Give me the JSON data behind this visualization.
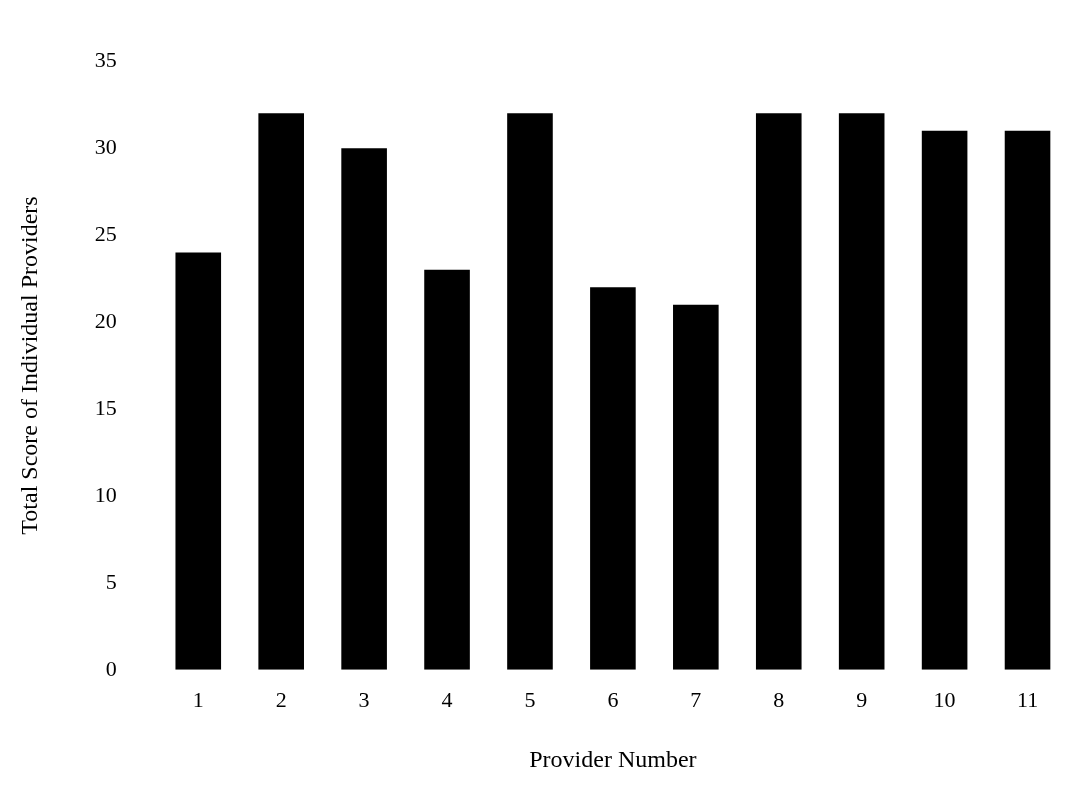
{
  "chart_data": {
    "type": "bar",
    "xlabel": "Provider Number",
    "ylabel": "Total Score of Individual Providers",
    "categories": [
      "1",
      "2",
      "3",
      "4",
      "5",
      "6",
      "7",
      "8",
      "9",
      "10",
      "11"
    ],
    "values": [
      24,
      32,
      30,
      23,
      32,
      22,
      21,
      32,
      32,
      31,
      31
    ],
    "color": "#000000",
    "ylim": [
      0,
      35
    ],
    "yticks": [
      0,
      5,
      10,
      15,
      20,
      25,
      30,
      35
    ],
    "grid": false,
    "legend": false
  }
}
